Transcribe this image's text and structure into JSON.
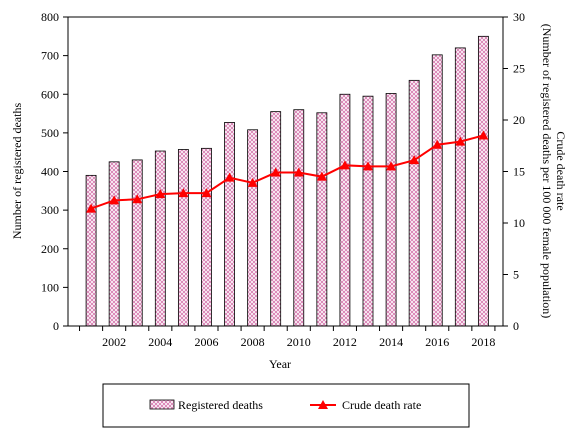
{
  "chart_data": {
    "type": "bar+line",
    "x": [
      2001,
      2002,
      2003,
      2004,
      2005,
      2006,
      2007,
      2008,
      2009,
      2010,
      2011,
      2012,
      2013,
      2014,
      2015,
      2016,
      2017,
      2018
    ],
    "x_tick_labels": [
      "2002",
      "2004",
      "2006",
      "2008",
      "2010",
      "2012",
      "2014",
      "2016",
      "2018"
    ],
    "x_tick_values": [
      2002,
      2004,
      2006,
      2008,
      2010,
      2012,
      2014,
      2016,
      2018
    ],
    "xlabel": "Year",
    "ylabel_left": "Number of registered deaths",
    "ylabel_right_line1": "Crude death rate",
    "ylabel_right_line2": "(Number of registered deaths per 100 000 female population)",
    "ylim_left": [
      0,
      800
    ],
    "y_left_ticks": [
      0,
      100,
      200,
      300,
      400,
      500,
      600,
      700,
      800
    ],
    "ylim_right": [
      0,
      30
    ],
    "y_right_ticks": [
      0,
      5,
      10,
      15,
      20,
      25,
      30
    ],
    "grid": false,
    "legend_position": "bottom",
    "series": [
      {
        "name": "Registered deaths",
        "type": "bar",
        "axis": "left",
        "pattern": "pink-crosshatch",
        "values": [
          390,
          425,
          430,
          453,
          457,
          460,
          527,
          508,
          555,
          560,
          552,
          600,
          595,
          602,
          636,
          702,
          720,
          750
        ]
      },
      {
        "name": "Crude death rate",
        "type": "line",
        "axis": "right",
        "color": "#ff0000",
        "marker": "triangle",
        "values": [
          11.4,
          12.2,
          12.3,
          12.8,
          12.9,
          12.9,
          14.4,
          13.9,
          14.9,
          14.9,
          14.5,
          15.6,
          15.5,
          15.5,
          16.1,
          17.6,
          17.9,
          18.5
        ]
      }
    ]
  }
}
